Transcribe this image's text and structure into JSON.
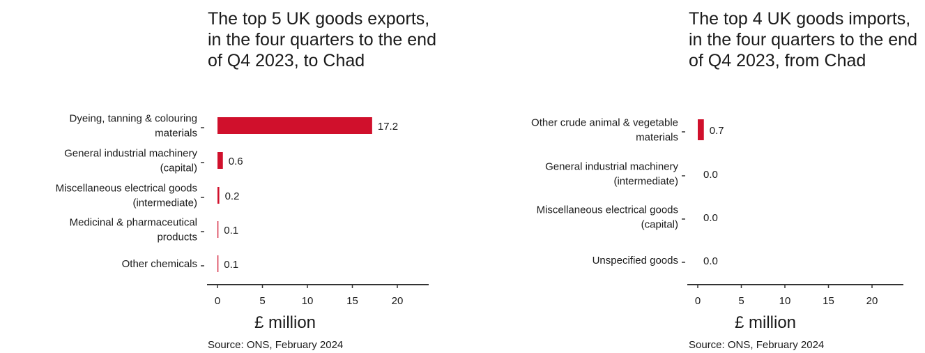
{
  "chart_data": [
    {
      "type": "bar",
      "orientation": "horizontal",
      "title": "The top 5 UK goods exports, in the four quarters to the end of Q4 2023, to Chad",
      "categories": [
        [
          "Dyeing, tanning & colouring",
          "materials"
        ],
        [
          "General industrial machinery",
          "(capital)"
        ],
        [
          "Miscellaneous electrical goods",
          "(intermediate)"
        ],
        [
          "Medicinal & pharmaceutical",
          "products"
        ],
        [
          "Other chemicals"
        ]
      ],
      "values": [
        17.2,
        0.6,
        0.2,
        0.1,
        0.1
      ],
      "value_labels": [
        "17.2",
        "0.6",
        "0.2",
        "0.1",
        "0.1"
      ],
      "xlabel": "£ million",
      "xlim": [
        0,
        23
      ],
      "xticks": [
        0,
        5,
        10,
        15,
        20
      ],
      "bar_color": "#d0102c",
      "grid": false,
      "source": "Source: ONS, February 2024"
    },
    {
      "type": "bar",
      "orientation": "horizontal",
      "title": "The top 4 UK goods imports, in the four quarters to the end of Q4 2023, from Chad",
      "categories": [
        [
          "Other crude animal & vegetable",
          "materials"
        ],
        [
          "General industrial machinery",
          "(intermediate)"
        ],
        [
          "Miscellaneous electrical goods",
          "(capital)"
        ],
        [
          "Unspecified goods"
        ]
      ],
      "values": [
        0.7,
        0.0,
        0.0,
        0.0
      ],
      "value_labels": [
        "0.7",
        "0.0",
        "0.0",
        "0.0"
      ],
      "xlabel": "£ million",
      "xlim": [
        0,
        23
      ],
      "xticks": [
        0,
        5,
        10,
        15,
        20
      ],
      "bar_color": "#d0102c",
      "grid": false,
      "source": "Source: ONS, February 2024"
    }
  ]
}
